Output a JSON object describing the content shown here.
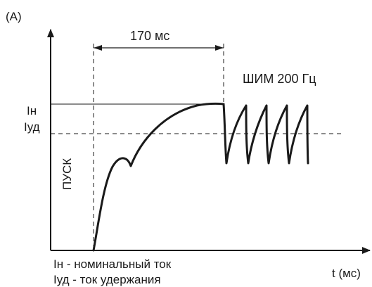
{
  "diagram": {
    "panel_label": "(A)",
    "duration_label": "170 мс",
    "pwm_label": "ШИМ 200 Гц",
    "nominal_current_label": "Iн",
    "hold_current_label": "Iуд",
    "start_label": "ПУСК",
    "legend_line_1": "Iн - номинальный ток",
    "legend_line_2": "Iуд - ток удержания",
    "x_axis_label": "t (мс)",
    "colors": {
      "ink": "#1a1a1a",
      "background": "#ffffff"
    }
  }
}
